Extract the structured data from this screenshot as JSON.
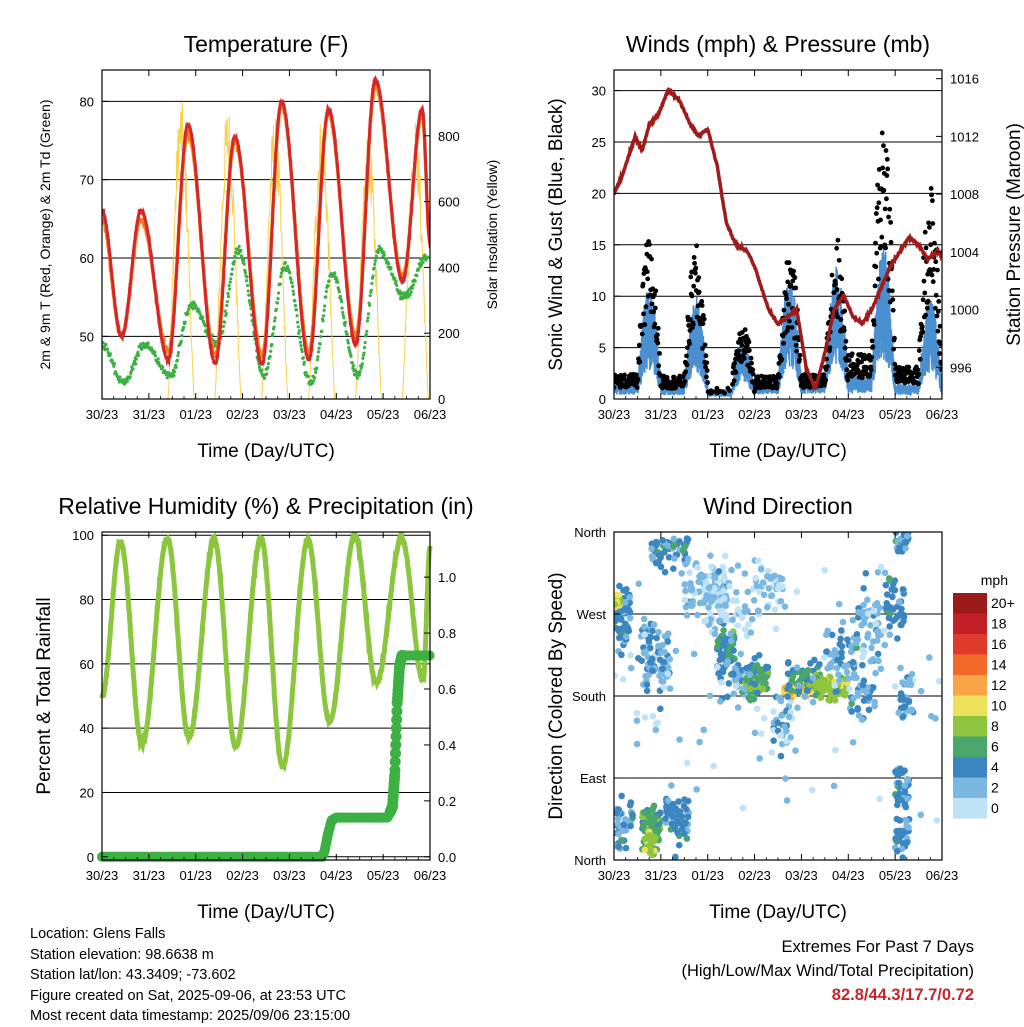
{
  "x_tick_labels": [
    "30/23",
    "31/23",
    "01/23",
    "02/23",
    "03/23",
    "04/23",
    "05/23",
    "06/23"
  ],
  "chart_data": [
    {
      "id": "temperature",
      "type": "line",
      "title": "Temperature (F)",
      "xlabel": "Time (Day/UTC)",
      "ylabel": "2m & 9m T (Red, Orange) & 2m Td (Green)",
      "y2label": "Solar Insolation (Yellow)",
      "xlim": [
        0,
        7
      ],
      "ylim": [
        42,
        84
      ],
      "y_ticks": [
        50,
        60,
        70,
        80
      ],
      "y2lim": [
        0,
        1000
      ],
      "y2_ticks": [
        0,
        200,
        400,
        600,
        800
      ],
      "colors": {
        "t2m": "#d62728",
        "t9m": "#f07f1e",
        "td": "#3cb043",
        "solar": "#f7d24a"
      },
      "series": [
        {
          "name": "2m T",
          "key": "t2m",
          "daily_min": [
            50,
            47,
            46.5,
            46.5,
            47,
            49,
            57,
            61
          ],
          "daily_max": [
            66,
            77,
            75.5,
            80,
            79,
            82.8,
            79,
            63
          ],
          "start_value": 66,
          "end_value": 62
        },
        {
          "name": "9m T",
          "key": "t9m",
          "daily_min": [
            50,
            48,
            47.5,
            47.5,
            48,
            50,
            57.5,
            61
          ],
          "daily_max": [
            65,
            76,
            75,
            79.5,
            78.5,
            82,
            78.5,
            63
          ],
          "start_value": 65,
          "end_value": 62
        },
        {
          "name": "2m Td",
          "key": "td",
          "daily_min": [
            44,
            45,
            49,
            45,
            44,
            45,
            55,
            59
          ],
          "daily_max": [
            49,
            54,
            61,
            59,
            58,
            61,
            60,
            62
          ],
          "start_value": 49,
          "end_value": 60
        },
        {
          "name": "Solar Insolation",
          "key": "solar",
          "axis": "y2",
          "daily_peak": [
            0,
            920,
            900,
            870,
            870,
            820,
            860,
            180
          ]
        }
      ],
      "extremes": {
        "high": 82.8,
        "low": 44.3
      }
    },
    {
      "id": "winds",
      "type": "line",
      "title": "Winds (mph) & Pressure (mb)",
      "xlabel": "Time (Day/UTC)",
      "ylabel": "Sonic Wind & Gust (Blue, Black)",
      "y2label": "Station Pressure (Maroon)",
      "xlim": [
        0,
        7
      ],
      "ylim": [
        0,
        32
      ],
      "y_ticks": [
        0,
        5,
        10,
        15,
        20,
        25,
        30
      ],
      "y2lim": [
        993.8,
        1016.6
      ],
      "y2_ticks": [
        996,
        1000,
        1004,
        1008,
        1012,
        1016
      ],
      "colors": {
        "wind": "#4a90d0",
        "gust": "#000000",
        "pressure": "#a01c1c"
      },
      "series": [
        {
          "name": "Pressure",
          "key": "pressure",
          "axis": "y2",
          "x": [
            0,
            0.2,
            0.45,
            0.6,
            0.75,
            0.95,
            1.15,
            1.4,
            1.6,
            1.8,
            2.0,
            2.2,
            2.4,
            2.6,
            2.85,
            3.0,
            3.3,
            3.5,
            3.7,
            3.9,
            4.1,
            4.3,
            4.5,
            4.7,
            4.9,
            5.1,
            5.3,
            5.5,
            5.7,
            5.9,
            6.1,
            6.3,
            6.5,
            6.7,
            6.9,
            7.0
          ],
          "values": [
            1008,
            1009.5,
            1012,
            1011,
            1012.8,
            1013.5,
            1015.2,
            1014.5,
            1013,
            1012,
            1012.5,
            1010,
            1006,
            1004.5,
            1004,
            1003,
            1000,
            999,
            999.5,
            1000,
            996,
            994.5,
            997,
            1000,
            1001,
            999.5,
            999,
            1000,
            1001.5,
            1003,
            1004,
            1005,
            1004.5,
            1003.5,
            1004,
            1003.8
          ]
        },
        {
          "name": "Sonic Wind",
          "key": "wind",
          "daily_peak": [
            11,
            10,
            6,
            12,
            13,
            15,
            10,
            6
          ]
        },
        {
          "name": "Gust",
          "key": "gust",
          "daily_peak": [
            16,
            15,
            8,
            15,
            16,
            29.5,
            21,
            8
          ]
        }
      ],
      "extremes": {
        "max_wind": 17.7
      }
    },
    {
      "id": "humidity",
      "type": "line",
      "title": "Relative Humidity (%) & Precipitation (in)",
      "xlabel": "Time (Day/UTC)",
      "ylabel": "Percent & Total Rainfall",
      "xlim": [
        0,
        7
      ],
      "ylim": [
        -1,
        101
      ],
      "y_ticks": [
        0,
        20,
        40,
        60,
        80,
        100
      ],
      "y2lim": [
        -0.0115,
        1.1615
      ],
      "y2_ticks": [
        0.0,
        0.2,
        0.4,
        0.6,
        0.8,
        1.0
      ],
      "colors": {
        "rh": "#8cc63f",
        "precip": "#3cb043"
      },
      "series": [
        {
          "name": "Relative Humidity",
          "key": "rh",
          "daily_min": [
            35,
            37,
            34,
            28,
            42,
            54,
            55
          ],
          "daily_max": [
            98,
            99,
            98.5,
            99,
            98.5,
            100,
            99
          ],
          "start_value": 50,
          "end_value": 96
        },
        {
          "name": "Total Rainfall",
          "key": "precip",
          "axis": "y2",
          "x": [
            0,
            4.7,
            4.75,
            4.82,
            4.9,
            5.0,
            6.1,
            6.2,
            6.25,
            6.28,
            6.3,
            6.35,
            6.4,
            7.0
          ],
          "values": [
            0,
            0,
            0.02,
            0.08,
            0.13,
            0.14,
            0.14,
            0.18,
            0.3,
            0.45,
            0.55,
            0.68,
            0.72,
            0.72
          ]
        }
      ],
      "extremes": {
        "total_precipitation": 0.72
      }
    },
    {
      "id": "direction",
      "type": "scatter",
      "title": "Wind Direction",
      "xlabel": "Time (Day/UTC)",
      "ylabel": "Direction (Colored By Speed)",
      "xlim": [
        0,
        7
      ],
      "ylim": [
        0,
        360
      ],
      "y_ticks": [
        0,
        90,
        180,
        270,
        360
      ],
      "y_tick_labels": [
        "North",
        "East",
        "South",
        "West",
        "North"
      ],
      "legend": {
        "title": "mph",
        "placement": "right",
        "labels": [
          "20+",
          "18",
          "16",
          "14",
          "12",
          "10",
          "8",
          "6",
          "4",
          "2",
          "0"
        ],
        "colors": [
          "#9b1b1b",
          "#c4202a",
          "#e03a2b",
          "#f26b2a",
          "#f9a447",
          "#ede05a",
          "#8fc43f",
          "#4aa66b",
          "#3b86c0",
          "#7ab8e2",
          "#bfe2f7"
        ]
      }
    }
  ],
  "info": {
    "location": "Location: Glens Falls",
    "elevation": "Station elevation: 98.6638 m",
    "latlon": "Station lat/lon: 43.3409; -73.602",
    "created": "Figure created on Sat, 2025-09-06, at 23:53 UTC",
    "recent": "Most recent data timestamp: 2025/09/06 23:15:00"
  },
  "extremes_box": {
    "title": "Extremes For Past 7 Days",
    "subtitle": "(High/Low/Max Wind/Total Precipitation)",
    "value": "82.8/44.3/17.7/0.72"
  }
}
